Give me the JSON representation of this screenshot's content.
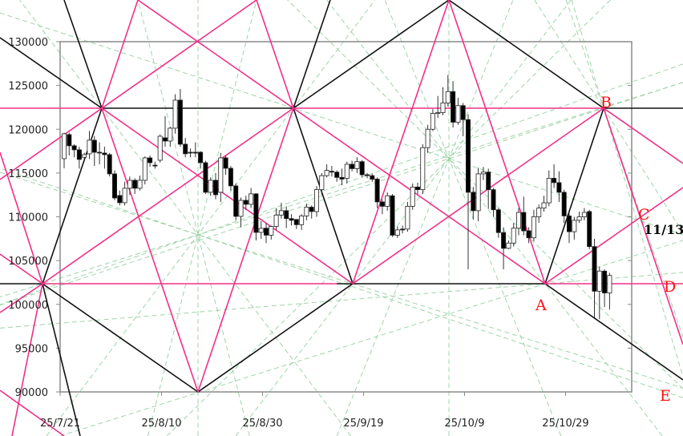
{
  "chart_data": {
    "type": "candlestick",
    "title": "",
    "xlabel": "",
    "ylabel": "",
    "ylim": [
      90000,
      130000
    ],
    "y_ticks": [
      "130000",
      "125000",
      "120000",
      "115000",
      "110000",
      "105000",
      "100000",
      "95000",
      "90000"
    ],
    "x_ticks": [
      "25/7/21",
      "25/8/10",
      "25/8/30",
      "25/9/19",
      "25/10/9",
      "25/10/29"
    ],
    "grid": false,
    "candles_ohlc": [
      [
        116640,
        119600,
        115540,
        119480
      ],
      [
        119390,
        119600,
        117000,
        118110
      ],
      [
        118110,
        118300,
        116800,
        117650
      ],
      [
        117650,
        118000,
        115500,
        116550
      ],
      [
        116800,
        117300,
        116600,
        117100
      ],
      [
        117190,
        119800,
        116600,
        118750
      ],
      [
        118750,
        119200,
        115800,
        117370
      ],
      [
        117370,
        118500,
        116000,
        117280
      ],
      [
        117280,
        118000,
        115500,
        117100
      ],
      [
        117100,
        117300,
        114600,
        114900
      ],
      [
        114900,
        115300,
        111900,
        112150
      ],
      [
        112430,
        113000,
        111300,
        111610
      ],
      [
        111610,
        114000,
        111300,
        113260
      ],
      [
        113260,
        114600,
        112500,
        114170
      ],
      [
        114170,
        114400,
        112600,
        113260
      ],
      [
        113260,
        114700,
        113000,
        114170
      ],
      [
        114170,
        116900,
        113700,
        116730
      ],
      [
        116730,
        117000,
        115700,
        116180
      ],
      [
        115900,
        116300,
        115500,
        115800
      ],
      [
        116460,
        119400,
        116200,
        119200
      ],
      [
        119020,
        121500,
        118000,
        118650
      ],
      [
        118650,
        120300,
        118000,
        120120
      ],
      [
        120120,
        124000,
        119500,
        123320
      ],
      [
        123320,
        124600,
        118000,
        118290
      ],
      [
        118290,
        119000,
        116800,
        117200
      ],
      [
        117370,
        117800,
        116800,
        117280
      ],
      [
        117370,
        118500,
        116800,
        117280
      ],
      [
        117370,
        117500,
        115500,
        116180
      ],
      [
        116180,
        116400,
        112600,
        112800
      ],
      [
        112800,
        114500,
        112400,
        114170
      ],
      [
        114170,
        115000,
        112000,
        112520
      ],
      [
        112800,
        117300,
        111700,
        116730
      ],
      [
        116730,
        117000,
        114800,
        115540
      ],
      [
        115540,
        115800,
        113000,
        113530
      ],
      [
        113530,
        113800,
        109600,
        110050
      ],
      [
        110050,
        112200,
        108800,
        111880
      ],
      [
        111880,
        112400,
        110800,
        111430
      ],
      [
        111430,
        113300,
        111000,
        112620
      ],
      [
        112620,
        112700,
        107300,
        108220
      ],
      [
        108220,
        109500,
        107500,
        108680
      ],
      [
        108700,
        109300,
        107000,
        107900
      ],
      [
        107900,
        109000,
        107400,
        108900
      ],
      [
        108900,
        111000,
        108500,
        110200
      ],
      [
        110200,
        111600,
        109800,
        110700
      ],
      [
        110700,
        111200,
        108700,
        109800
      ],
      [
        109800,
        110300,
        109000,
        109600
      ],
      [
        109700,
        109700,
        108600,
        109100
      ],
      [
        109100,
        110300,
        108500,
        110100
      ],
      [
        110100,
        111500,
        109600,
        111100
      ],
      [
        111100,
        111300,
        109800,
        110600
      ],
      [
        110600,
        113500,
        110000,
        113100
      ],
      [
        113100,
        115000,
        112500,
        114700
      ],
      [
        114700,
        116000,
        114500,
        115300
      ],
      [
        115200,
        115800,
        114600,
        115100
      ],
      [
        115100,
        115300,
        114000,
        114500
      ],
      [
        114500,
        115500,
        113600,
        114300
      ],
      [
        114400,
        116300,
        113800,
        116000
      ],
      [
        116000,
        116400,
        115200,
        115500
      ],
      [
        115500,
        116800,
        115000,
        116300
      ],
      [
        116300,
        116500,
        114500,
        114800
      ],
      [
        114800,
        115000,
        114400,
        114700
      ],
      [
        114700,
        114900,
        114000,
        114300
      ],
      [
        114300,
        114500,
        111000,
        111700
      ],
      [
        111700,
        112000,
        110300,
        111200
      ],
      [
        111200,
        112800,
        110700,
        112400
      ],
      [
        112400,
        112600,
        107700,
        107900
      ],
      [
        107900,
        108900,
        107600,
        108500
      ],
      [
        108600,
        109000,
        108100,
        108500
      ],
      [
        108600,
        111700,
        108300,
        111200
      ],
      [
        111200,
        113800,
        110800,
        113400
      ],
      [
        113400,
        113900,
        112600,
        113100
      ],
      [
        113100,
        118300,
        112600,
        117900
      ],
      [
        117900,
        120500,
        117300,
        120000
      ],
      [
        120000,
        122300,
        119800,
        121800
      ],
      [
        121800,
        123800,
        121300,
        121900
      ],
      [
        121900,
        124800,
        121600,
        123000
      ],
      [
        123000,
        126200,
        122600,
        124300
      ],
      [
        124300,
        125500,
        120200,
        120800
      ],
      [
        120800,
        123600,
        120500,
        122700
      ],
      [
        122700,
        123000,
        119200,
        121100
      ],
      [
        121100,
        121700,
        104000,
        112800
      ],
      [
        112800,
        113400,
        109700,
        110700
      ],
      [
        110700,
        115600,
        109500,
        114900
      ],
      [
        114900,
        115700,
        114200,
        115100
      ],
      [
        115100,
        115500,
        110900,
        113100
      ],
      [
        113100,
        113300,
        110000,
        110800
      ],
      [
        110800,
        111000,
        107600,
        108200
      ],
      [
        108200,
        108800,
        104000,
        106400
      ],
      [
        106400,
        107300,
        106300,
        107000
      ],
      [
        107000,
        109300,
        106600,
        108700
      ],
      [
        108700,
        111000,
        107900,
        110500
      ],
      [
        110500,
        112300,
        107900,
        108400
      ],
      [
        108400,
        108800,
        107000,
        107600
      ],
      [
        107600,
        110800,
        107200,
        110000
      ],
      [
        110000,
        111400,
        109300,
        111000
      ],
      [
        111000,
        112400,
        110600,
        111600
      ],
      [
        111600,
        115300,
        111200,
        114400
      ],
      [
        114400,
        116000,
        113300,
        113900
      ],
      [
        113900,
        115200,
        111700,
        112800
      ],
      [
        112800,
        113100,
        109300,
        110100
      ],
      [
        110100,
        110500,
        107000,
        108300
      ],
      [
        108300,
        110000,
        107400,
        109600
      ],
      [
        109600,
        110600,
        109300,
        110000
      ],
      [
        110000,
        111000,
        109600,
        110500
      ],
      [
        110600,
        110800,
        106300,
        106600
      ],
      [
        106600,
        107500,
        98500,
        101500
      ],
      [
        101500,
        104300,
        98300,
        103800
      ],
      [
        103800,
        104000,
        99700,
        101300
      ],
      [
        101300,
        103600,
        99400,
        103300
      ]
    ],
    "annotations": {
      "points": {
        "A": "A",
        "B": "B",
        "C": "C",
        "D": "D",
        "E": "E"
      },
      "date_note": "11/13"
    },
    "colors": {
      "up_body": "#ffffff",
      "down_body": "#000000",
      "line_black": "#111111",
      "line_pink": "#f0308a",
      "guide_green": "#9fd4a8",
      "point_labels": "#ff1010"
    }
  }
}
